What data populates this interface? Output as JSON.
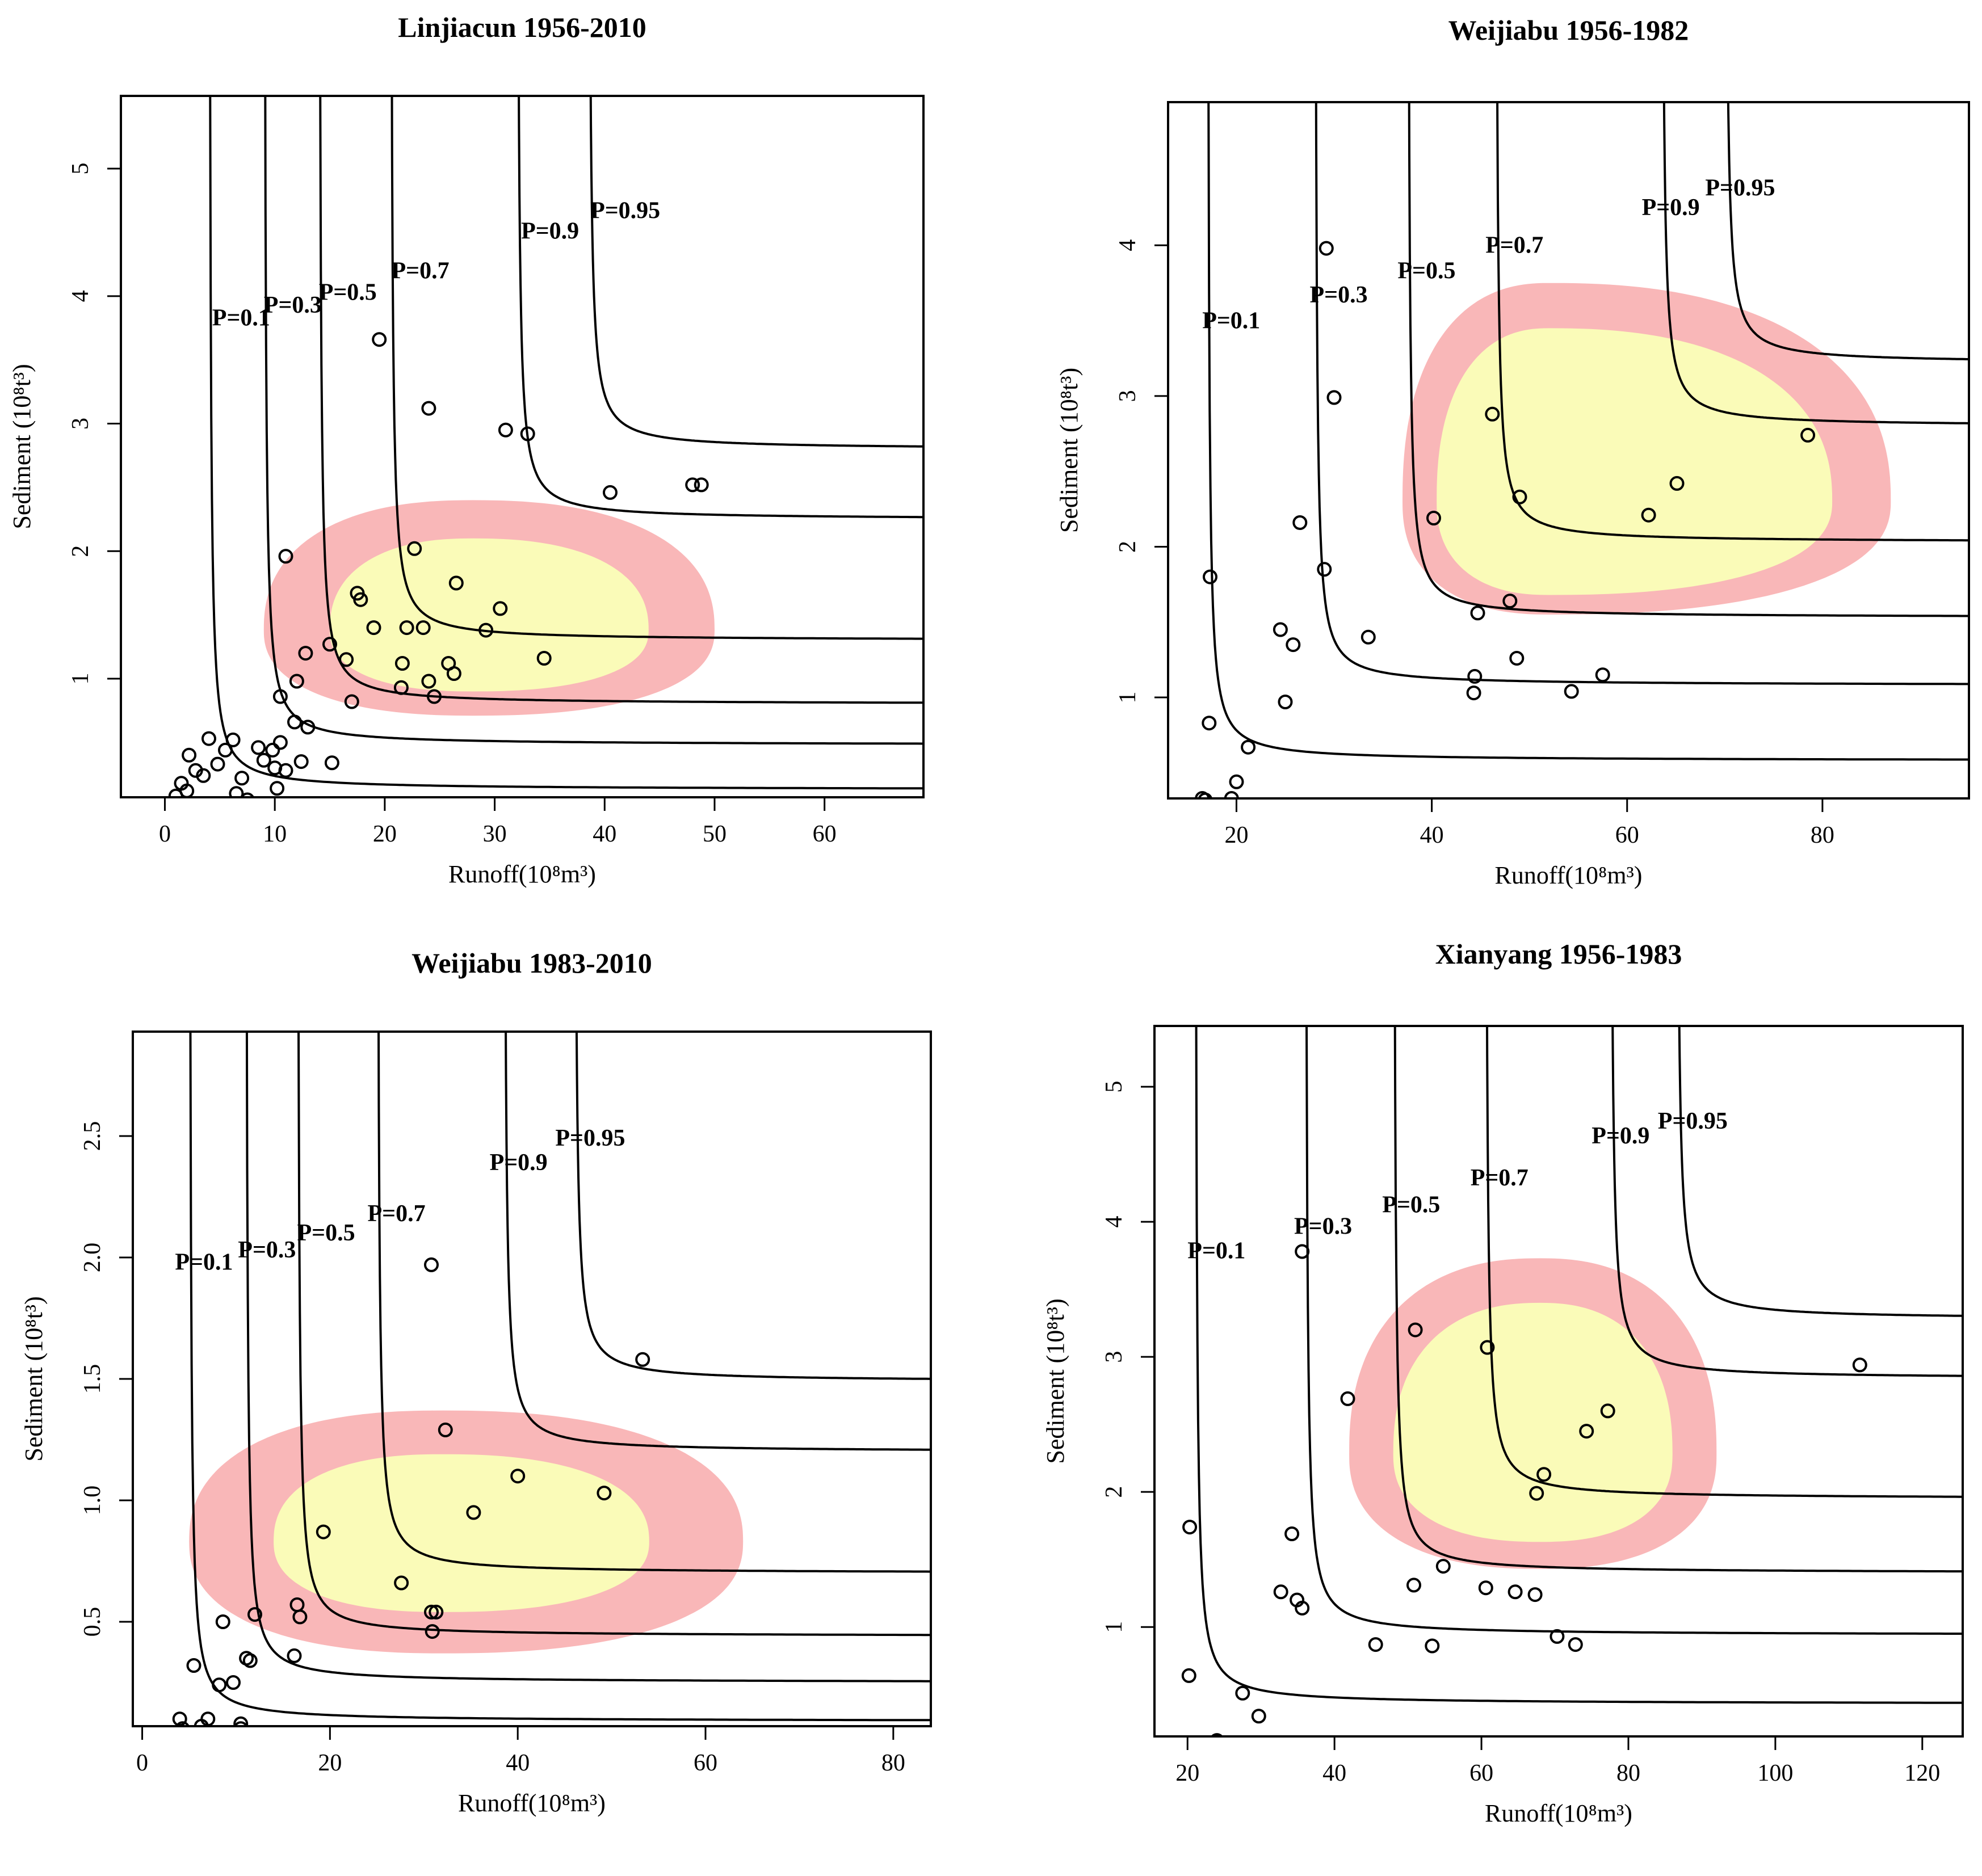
{
  "colors": {
    "outer_region": "#f9b7b8",
    "inner_region": "#fafbb8",
    "ink": "#000000"
  },
  "chart_data": [
    {
      "type": "scatter",
      "title": "Linjiacun 1956-2010",
      "xlabel": "Runoff(10⁸m³)",
      "ylabel": "Sediment (10⁸t³)",
      "xlim": [
        -4,
        69
      ],
      "ylim": [
        0.07,
        5.57
      ],
      "xticks": [
        0,
        10,
        20,
        30,
        40,
        50,
        60
      ],
      "yticks": [
        1,
        2,
        3,
        4,
        5
      ],
      "curves": [
        {
          "label": "P=0.1",
          "a": 4.0,
          "b": 0.13
        },
        {
          "label": "P=0.3",
          "a": 9.0,
          "b": 0.48
        },
        {
          "label": "P=0.5",
          "a": 14.0,
          "b": 0.8
        },
        {
          "label": "P=0.7",
          "a": 20.5,
          "b": 1.3
        },
        {
          "label": "P=0.9",
          "a": 32.0,
          "b": 2.25
        },
        {
          "label": "P=0.95",
          "a": 38.5,
          "b": 2.8
        }
      ],
      "regions": {
        "outer": {
          "cx": 28,
          "cy": 1.38,
          "rxl": 19,
          "rxr": 22,
          "ryt": 1.02,
          "ryb": 0.67
        },
        "inner": {
          "cx": 28,
          "cy": 1.38,
          "rxl": 13,
          "rxr": 16,
          "ryt": 0.72,
          "ryb": 0.48
        }
      },
      "points": [
        [
          1,
          0.08
        ],
        [
          1.5,
          0.18
        ],
        [
          2,
          0.12
        ],
        [
          2.2,
          0.4
        ],
        [
          2.8,
          0.28
        ],
        [
          3.5,
          0.24
        ],
        [
          4,
          0.53
        ],
        [
          4.8,
          0.33
        ],
        [
          5.5,
          0.44
        ],
        [
          6.2,
          0.52
        ],
        [
          6.5,
          0.1
        ],
        [
          7,
          0.22
        ],
        [
          7.5,
          0.05
        ],
        [
          8.5,
          0.46
        ],
        [
          9,
          0.36
        ],
        [
          9.8,
          0.44
        ],
        [
          10,
          0.3
        ],
        [
          10.5,
          0.5
        ],
        [
          10.2,
          0.14
        ],
        [
          11,
          0.28
        ],
        [
          11.8,
          0.66
        ],
        [
          12.4,
          0.35
        ],
        [
          13,
          0.62
        ],
        [
          15.2,
          0.34
        ],
        [
          11,
          1.96
        ],
        [
          19.5,
          3.66
        ],
        [
          24,
          3.12
        ],
        [
          31,
          2.95
        ],
        [
          33,
          2.92
        ],
        [
          40.5,
          2.46
        ],
        [
          48,
          2.52
        ],
        [
          48.8,
          2.52
        ],
        [
          10.5,
          0.86
        ],
        [
          12,
          0.98
        ],
        [
          12.8,
          1.2
        ],
        [
          15,
          1.27
        ],
        [
          16.5,
          1.15
        ],
        [
          17,
          0.82
        ],
        [
          17.5,
          1.67
        ],
        [
          17.8,
          1.62
        ],
        [
          19,
          1.4
        ],
        [
          21.5,
          0.93
        ],
        [
          21.6,
          1.12
        ],
        [
          22,
          1.4
        ],
        [
          22.7,
          2.02
        ],
        [
          23.5,
          1.4
        ],
        [
          24,
          0.98
        ],
        [
          24.5,
          0.86
        ],
        [
          25.8,
          1.12
        ],
        [
          26.3,
          1.04
        ],
        [
          26.5,
          1.75
        ],
        [
          29.2,
          1.38
        ],
        [
          30.5,
          1.55
        ],
        [
          34.5,
          1.16
        ]
      ],
      "curve_label_positions": [
        {
          "label": "P=0.1",
          "x": 4.3,
          "y": 3.77
        },
        {
          "label": "P=0.3",
          "x": 9.0,
          "y": 3.87
        },
        {
          "label": "P=0.5",
          "x": 14.0,
          "y": 3.97
        },
        {
          "label": "P=0.7",
          "x": 20.6,
          "y": 4.14
        },
        {
          "label": "P=0.9",
          "x": 32.4,
          "y": 4.45
        },
        {
          "label": "P=0.95",
          "x": 38.7,
          "y": 4.61
        }
      ]
    },
    {
      "type": "scatter",
      "title": "Weijiabu 1956-1982",
      "xlabel": "Runoff(10⁸m³)",
      "ylabel": "Sediment (10⁸t³)",
      "xlim": [
        13,
        95
      ],
      "ylim": [
        0.33,
        4.95
      ],
      "xticks": [
        20,
        40,
        60,
        80
      ],
      "yticks": [
        1,
        2,
        3,
        4
      ],
      "curves": [
        {
          "label": "P=0.1",
          "a": 17.0,
          "b": 0.58
        },
        {
          "label": "P=0.3",
          "a": 28.0,
          "b": 1.08
        },
        {
          "label": "P=0.5",
          "a": 37.5,
          "b": 1.53
        },
        {
          "label": "P=0.7",
          "a": 46.5,
          "b": 2.03
        },
        {
          "label": "P=0.9",
          "a": 63.5,
          "b": 2.8
        },
        {
          "label": "P=0.95",
          "a": 70.0,
          "b": 3.22
        }
      ],
      "regions": {
        "outer": {
          "cx": 52,
          "cy": 2.3,
          "rxl": 15,
          "rxr": 35,
          "ryt": 1.45,
          "ryb": 0.75
        },
        "inner": {
          "cx": 52,
          "cy": 2.3,
          "rxl": 11.5,
          "rxr": 29,
          "ryt": 1.15,
          "ryb": 0.62
        }
      },
      "points": [
        [
          16.5,
          0.33
        ],
        [
          16.8,
          0.32
        ],
        [
          17.2,
          0.83
        ],
        [
          17.3,
          1.8
        ],
        [
          20,
          0.44
        ],
        [
          21.2,
          0.67
        ],
        [
          19.5,
          0.33
        ],
        [
          24.5,
          1.45
        ],
        [
          25,
          0.97
        ],
        [
          25.8,
          1.35
        ],
        [
          26.5,
          2.16
        ],
        [
          29,
          1.85
        ],
        [
          29.2,
          3.98
        ],
        [
          30,
          2.99
        ],
        [
          33.5,
          1.4
        ],
        [
          40.2,
          2.19
        ],
        [
          44.3,
          1.03
        ],
        [
          44.4,
          1.14
        ],
        [
          44.7,
          1.56
        ],
        [
          46.2,
          2.88
        ],
        [
          48,
          1.64
        ],
        [
          48.7,
          1.26
        ],
        [
          49,
          2.33
        ],
        [
          54.3,
          1.04
        ],
        [
          57.5,
          1.15
        ],
        [
          62.2,
          2.21
        ],
        [
          65.1,
          2.42
        ],
        [
          78.5,
          2.74
        ]
      ],
      "curve_label_positions": [
        {
          "label": "P=0.1",
          "x": 16.5,
          "y": 3.45
        },
        {
          "label": "P=0.3",
          "x": 27.5,
          "y": 3.62
        },
        {
          "label": "P=0.5",
          "x": 36.5,
          "y": 3.78
        },
        {
          "label": "P=0.7",
          "x": 45.5,
          "y": 3.95
        },
        {
          "label": "P=0.9",
          "x": 61.5,
          "y": 4.2
        },
        {
          "label": "P=0.95",
          "x": 68.0,
          "y": 4.33
        }
      ]
    },
    {
      "type": "scatter",
      "title": "Weijiabu 1983-2010",
      "xlabel": "Runoff(10⁸m³)",
      "ylabel": "Sediment (10⁸t³)",
      "xlim": [
        -1,
        84
      ],
      "ylim": [
        0.07,
        2.93
      ],
      "xticks": [
        0,
        20,
        40,
        60,
        80
      ],
      "yticks": [
        0.5,
        1.0,
        1.5,
        2.0,
        2.5
      ],
      "ytick_format": "fixed1",
      "curves": [
        {
          "label": "P=0.1",
          "a": 5.0,
          "b": 0.09
        },
        {
          "label": "P=0.3",
          "a": 11.0,
          "b": 0.25
        },
        {
          "label": "P=0.5",
          "a": 16.5,
          "b": 0.44
        },
        {
          "label": "P=0.7",
          "a": 25.0,
          "b": 0.7
        },
        {
          "label": "P=0.9",
          "a": 38.5,
          "b": 1.2
        },
        {
          "label": "P=0.95",
          "a": 46.0,
          "b": 1.49
        }
      ],
      "regions": {
        "outer": {
          "cx": 32,
          "cy": 0.83,
          "rxl": 27,
          "rxr": 32,
          "ryt": 0.54,
          "ryb": 0.46
        },
        "inner": {
          "cx": 32,
          "cy": 0.83,
          "rxl": 18,
          "rxr": 22,
          "ryt": 0.36,
          "ryb": 0.29
        }
      },
      "points": [
        [
          4,
          0.1
        ],
        [
          4.3,
          0.06
        ],
        [
          5.5,
          0.32
        ],
        [
          6.3,
          0.07
        ],
        [
          7,
          0.1
        ],
        [
          8.2,
          0.24
        ],
        [
          8.6,
          0.5
        ],
        [
          9.7,
          0.25
        ],
        [
          10.5,
          0.08
        ],
        [
          10.5,
          0.06
        ],
        [
          11.1,
          0.35
        ],
        [
          11.5,
          0.34
        ],
        [
          12,
          0.53
        ],
        [
          16.2,
          0.36
        ],
        [
          16.5,
          0.57
        ],
        [
          16.8,
          0.52
        ],
        [
          19.3,
          0.87
        ],
        [
          19.7,
          0.04
        ],
        [
          27.6,
          0.66
        ],
        [
          30.8,
          0.54
        ],
        [
          30.9,
          0.46
        ],
        [
          31.3,
          0.54
        ],
        [
          30.8,
          1.97
        ],
        [
          32.3,
          1.29
        ],
        [
          35.3,
          0.95
        ],
        [
          40,
          1.1
        ],
        [
          49.2,
          1.03
        ],
        [
          53.3,
          1.58
        ]
      ],
      "curve_label_positions": [
        {
          "label": "P=0.1",
          "x": 3.5,
          "y": 1.95
        },
        {
          "label": "P=0.3",
          "x": 10.2,
          "y": 2.0
        },
        {
          "label": "P=0.5",
          "x": 16.5,
          "y": 2.07
        },
        {
          "label": "P=0.7",
          "x": 24.0,
          "y": 2.15
        },
        {
          "label": "P=0.9",
          "x": 37.0,
          "y": 2.36
        },
        {
          "label": "P=0.95",
          "x": 44.0,
          "y": 2.46
        }
      ]
    },
    {
      "type": "scatter",
      "title": "Xianyang 1956-1983",
      "xlabel": "Runoff(10⁸m³)",
      "ylabel": "Sediment (10⁸t³)",
      "xlim": [
        15.5,
        125.5
      ],
      "ylim": [
        0.19,
        5.45
      ],
      "xticks": [
        20,
        40,
        60,
        80,
        100,
        120
      ],
      "yticks": [
        1,
        2,
        3,
        4,
        5
      ],
      "curves": [
        {
          "label": "P=0.1",
          "a": 21.0,
          "b": 0.43
        },
        {
          "label": "P=0.3",
          "a": 36.0,
          "b": 0.94
        },
        {
          "label": "P=0.5",
          "a": 48.0,
          "b": 1.4
        },
        {
          "label": "P=0.7",
          "a": 60.5,
          "b": 1.95
        },
        {
          "label": "P=0.9",
          "a": 77.5,
          "b": 2.84
        },
        {
          "label": "P=0.95",
          "a": 86.5,
          "b": 3.28
        }
      ],
      "regions": {
        "outer": {
          "cx": 68,
          "cy": 2.28,
          "rxl": 26,
          "rxr": 24,
          "ryt": 1.45,
          "ryb": 0.85
        },
        "inner": {
          "cx": 68,
          "cy": 2.28,
          "rxl": 20,
          "rxr": 18,
          "ryt": 1.12,
          "ryb": 0.65
        }
      },
      "points": [
        [
          20.2,
          0.64
        ],
        [
          20.3,
          1.74
        ],
        [
          20.8,
          0.13
        ],
        [
          24,
          0.16
        ],
        [
          27.5,
          0.51
        ],
        [
          29.7,
          0.34
        ],
        [
          32.7,
          1.26
        ],
        [
          34.2,
          1.69
        ],
        [
          34.9,
          1.2
        ],
        [
          35.6,
          1.14
        ],
        [
          35.6,
          3.78
        ],
        [
          41.8,
          2.69
        ],
        [
          45.6,
          0.87
        ],
        [
          50.8,
          1.31
        ],
        [
          53.3,
          0.86
        ],
        [
          51,
          3.2
        ],
        [
          54.8,
          1.45
        ],
        [
          60.6,
          1.29
        ],
        [
          60.8,
          3.07
        ],
        [
          64.6,
          1.26
        ],
        [
          67.3,
          1.24
        ],
        [
          67.5,
          1.99
        ],
        [
          68.5,
          2.13
        ],
        [
          70.3,
          0.93
        ],
        [
          72.8,
          0.87
        ],
        [
          74.3,
          2.45
        ],
        [
          77.2,
          2.6
        ],
        [
          111.5,
          2.94
        ]
      ],
      "curve_label_positions": [
        {
          "label": "P=0.1",
          "x": 20.0,
          "y": 3.73
        },
        {
          "label": "P=0.3",
          "x": 34.5,
          "y": 3.91
        },
        {
          "label": "P=0.5",
          "x": 46.5,
          "y": 4.07
        },
        {
          "label": "P=0.7",
          "x": 58.5,
          "y": 4.27
        },
        {
          "label": "P=0.9",
          "x": 75.0,
          "y": 4.58
        },
        {
          "label": "P=0.95",
          "x": 84.0,
          "y": 4.69
        }
      ]
    }
  ]
}
